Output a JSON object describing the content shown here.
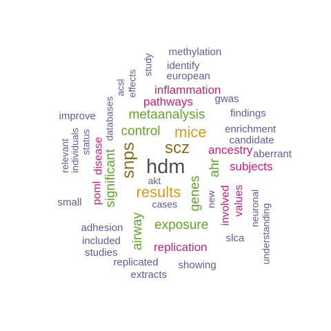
{
  "palette": {
    "purple": "#625a9a",
    "magenta": "#cc1a7a",
    "green": "#5fa52c",
    "orange": "#d99a1b",
    "brown": "#8c6a1e",
    "gray": "#4d4d4d"
  },
  "words": [
    {
      "text": "hdm",
      "color": "gray"
    },
    {
      "text": "scz",
      "color": "brown"
    },
    {
      "text": "snps",
      "color": "brown"
    },
    {
      "text": "mice",
      "color": "orange"
    },
    {
      "text": "results",
      "color": "orange"
    },
    {
      "text": "metaanalysis",
      "color": "green"
    },
    {
      "text": "control",
      "color": "green"
    },
    {
      "text": "exposure",
      "color": "green"
    },
    {
      "text": "significant",
      "color": "green"
    },
    {
      "text": "airway",
      "color": "green"
    },
    {
      "text": "genes",
      "color": "green"
    },
    {
      "text": "ahr",
      "color": "green"
    },
    {
      "text": "inflammation",
      "color": "magenta"
    },
    {
      "text": "pathways",
      "color": "magenta"
    },
    {
      "text": "ancestry",
      "color": "magenta"
    },
    {
      "text": "subjects",
      "color": "magenta"
    },
    {
      "text": "replication",
      "color": "magenta"
    },
    {
      "text": "disease",
      "color": "magenta"
    },
    {
      "text": "poml",
      "color": "magenta"
    },
    {
      "text": "involved",
      "color": "magenta"
    },
    {
      "text": "values",
      "color": "magenta"
    },
    {
      "text": "methylation",
      "color": "purple"
    },
    {
      "text": "identify",
      "color": "purple"
    },
    {
      "text": "european",
      "color": "purple"
    },
    {
      "text": "study",
      "color": "purple"
    },
    {
      "text": "acsl",
      "color": "purple"
    },
    {
      "text": "effects",
      "color": "purple"
    },
    {
      "text": "databases",
      "color": "purple"
    },
    {
      "text": "gwas",
      "color": "purple"
    },
    {
      "text": "findings",
      "color": "purple"
    },
    {
      "text": "improve",
      "color": "purple"
    },
    {
      "text": "enrichment",
      "color": "purple"
    },
    {
      "text": "candidate",
      "color": "purple"
    },
    {
      "text": "aberrant",
      "color": "purple"
    },
    {
      "text": "status",
      "color": "purple"
    },
    {
      "text": "relevant",
      "color": "purple"
    },
    {
      "text": "individuals",
      "color": "purple"
    },
    {
      "text": "akt",
      "color": "purple"
    },
    {
      "text": "small",
      "color": "purple"
    },
    {
      "text": "cases",
      "color": "purple"
    },
    {
      "text": "new",
      "color": "purple"
    },
    {
      "text": "neuronal",
      "color": "purple"
    },
    {
      "text": "understanding",
      "color": "purple"
    },
    {
      "text": "adhesion",
      "color": "purple"
    },
    {
      "text": "included",
      "color": "purple"
    },
    {
      "text": "studies",
      "color": "purple"
    },
    {
      "text": "slca",
      "color": "purple"
    },
    {
      "text": "replicated",
      "color": "purple"
    },
    {
      "text": "showing",
      "color": "purple"
    },
    {
      "text": "extracts",
      "color": "purple"
    }
  ]
}
